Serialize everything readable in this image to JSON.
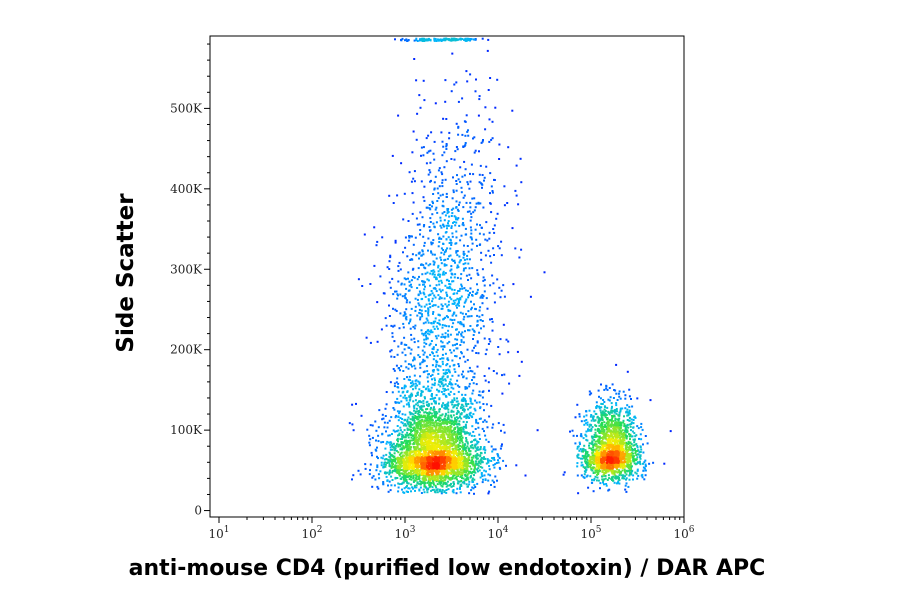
{
  "chart_data": {
    "type": "scatter",
    "title": "",
    "xlabel": "anti-mouse CD4 (purified low endotoxin) / DAR APC",
    "ylabel": "Side Scatter",
    "x_scale": "log",
    "xlim": [
      8,
      1000000
    ],
    "ylim": [
      -8000,
      590000
    ],
    "x_ticks": [
      {
        "value": 10,
        "base": "10",
        "exp": "1"
      },
      {
        "value": 100,
        "base": "10",
        "exp": "2"
      },
      {
        "value": 1000,
        "base": "10",
        "exp": "3"
      },
      {
        "value": 10000,
        "base": "10",
        "exp": "4"
      },
      {
        "value": 100000,
        "base": "10",
        "exp": "5"
      },
      {
        "value": 1000000,
        "base": "10",
        "exp": "6"
      }
    ],
    "y_ticks": [
      {
        "value": 0,
        "label": "0"
      },
      {
        "value": 100000,
        "label": "100K"
      },
      {
        "value": 200000,
        "label": "200K"
      },
      {
        "value": 300000,
        "label": "300K"
      },
      {
        "value": 400000,
        "label": "400K"
      },
      {
        "value": 500000,
        "label": "500K"
      }
    ],
    "grid": false,
    "legend": "none",
    "color_scale": "density (blue → cyan → green → yellow → red)",
    "populations": [
      {
        "description": "CD4-negative cluster",
        "center_x": 2000,
        "center_y": 68000,
        "spread_log_x": 0.26,
        "spread_y": 26000
      },
      {
        "description": "CD4-positive cluster",
        "center_x": 160000,
        "center_y": 72000,
        "spread_log_x": 0.15,
        "spread_y": 22000
      },
      {
        "description": "high side-scatter tail (CD4-negative)",
        "center_x": 2500,
        "center_y": 260000,
        "spread_log_x": 0.3,
        "spread_y": 110000
      }
    ],
    "colors": {
      "low_density": "#0000ff",
      "mid_low": "#00b4ff",
      "mid": "#22dd55",
      "mid_high": "#ffee00",
      "high_density": "#ff1000"
    }
  }
}
